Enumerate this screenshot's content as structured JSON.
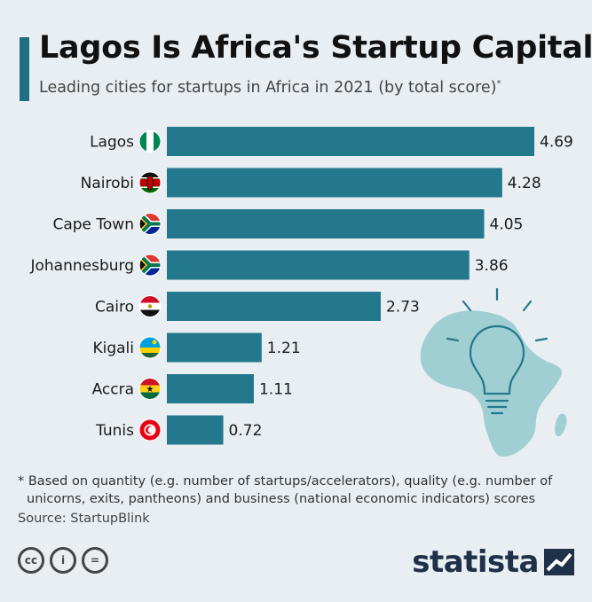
{
  "header": {
    "title": "Lagos Is Africa's Startup Capital",
    "subtitle": "Leading cities for startups in Africa in 2021 (by total score)",
    "subtitle_mark": "*"
  },
  "chart_data": {
    "type": "bar",
    "orientation": "horizontal",
    "title": "Lagos Is Africa's Startup Capital",
    "subtitle": "Leading cities for startups in Africa in 2021 (by total score)*",
    "categories": [
      "Lagos",
      "Nairobi",
      "Cape Town",
      "Johannesburg",
      "Cairo",
      "Kigali",
      "Accra",
      "Tunis"
    ],
    "values": [
      4.69,
      4.28,
      4.05,
      3.86,
      2.73,
      1.21,
      1.11,
      0.72
    ],
    "value_labels": [
      "4.69",
      "4.28",
      "4.05",
      "3.86",
      "2.73",
      "1.21",
      "1.11",
      "0.72"
    ],
    "flags": [
      "nigeria",
      "kenya",
      "south-africa",
      "south-africa",
      "egypt",
      "rwanda",
      "ghana",
      "tunisia"
    ],
    "xlim": [
      0,
      5
    ],
    "grid": false,
    "legend": "none",
    "bar_color": "#23788c"
  },
  "footnote": {
    "line1": "* Based on quantity (e.g. number of startups/accelerators), quality (e.g. number of",
    "line2": "unicorns, exits, pantheons) and business (national economic indicators) scores"
  },
  "source": "Source: StartupBlink",
  "license_icons": [
    "cc-icon",
    "attribution-icon",
    "no-derivatives-icon"
  ],
  "license_glyphs": [
    "cc",
    "i",
    "="
  ],
  "brand": {
    "name": "statista",
    "logo_icon": "statista-logo-icon"
  },
  "colors": {
    "background": "#e9eef2",
    "accent": "#1f6f82",
    "bar": "#23788c",
    "map": "#9fcfd2",
    "brand": "#1e3149"
  }
}
